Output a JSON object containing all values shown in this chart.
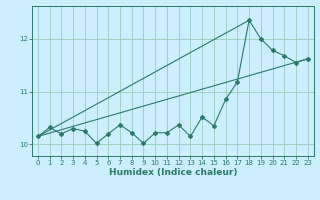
{
  "xlabel": "Humidex (Indice chaleur)",
  "bg_color": "#cceeff",
  "grid_color": "#99ccbb",
  "line_color": "#2a7a6a",
  "xlim": [
    -0.5,
    23.5
  ],
  "ylim": [
    9.78,
    12.62
  ],
  "yticks": [
    10,
    11,
    12
  ],
  "xticks": [
    0,
    1,
    2,
    3,
    4,
    5,
    6,
    7,
    8,
    9,
    10,
    11,
    12,
    13,
    14,
    15,
    16,
    17,
    18,
    19,
    20,
    21,
    22,
    23
  ],
  "xtick_labels": [
    "0",
    "1",
    "2",
    "3",
    "4",
    "5",
    "6",
    "7",
    "8",
    "9",
    "10",
    "11",
    "12",
    "13",
    "14",
    "15",
    "16",
    "17",
    "18",
    "19",
    "20",
    "21",
    "22",
    "23"
  ],
  "line1_x": [
    0,
    1,
    2,
    3,
    4,
    5,
    6,
    7,
    8,
    9,
    10,
    11,
    12,
    13,
    14,
    15,
    16,
    17,
    18,
    19,
    20,
    21,
    22,
    23
  ],
  "line1_y": [
    10.15,
    10.32,
    10.2,
    10.3,
    10.25,
    10.02,
    10.2,
    10.37,
    10.22,
    10.02,
    10.22,
    10.22,
    10.37,
    10.15,
    10.52,
    10.35,
    10.85,
    11.18,
    12.35,
    12.0,
    11.78,
    11.68,
    11.55,
    11.62
  ],
  "line2_x": [
    0,
    23
  ],
  "line2_y": [
    10.15,
    11.62
  ],
  "line3_x": [
    0,
    18
  ],
  "line3_y": [
    10.15,
    12.35
  ]
}
